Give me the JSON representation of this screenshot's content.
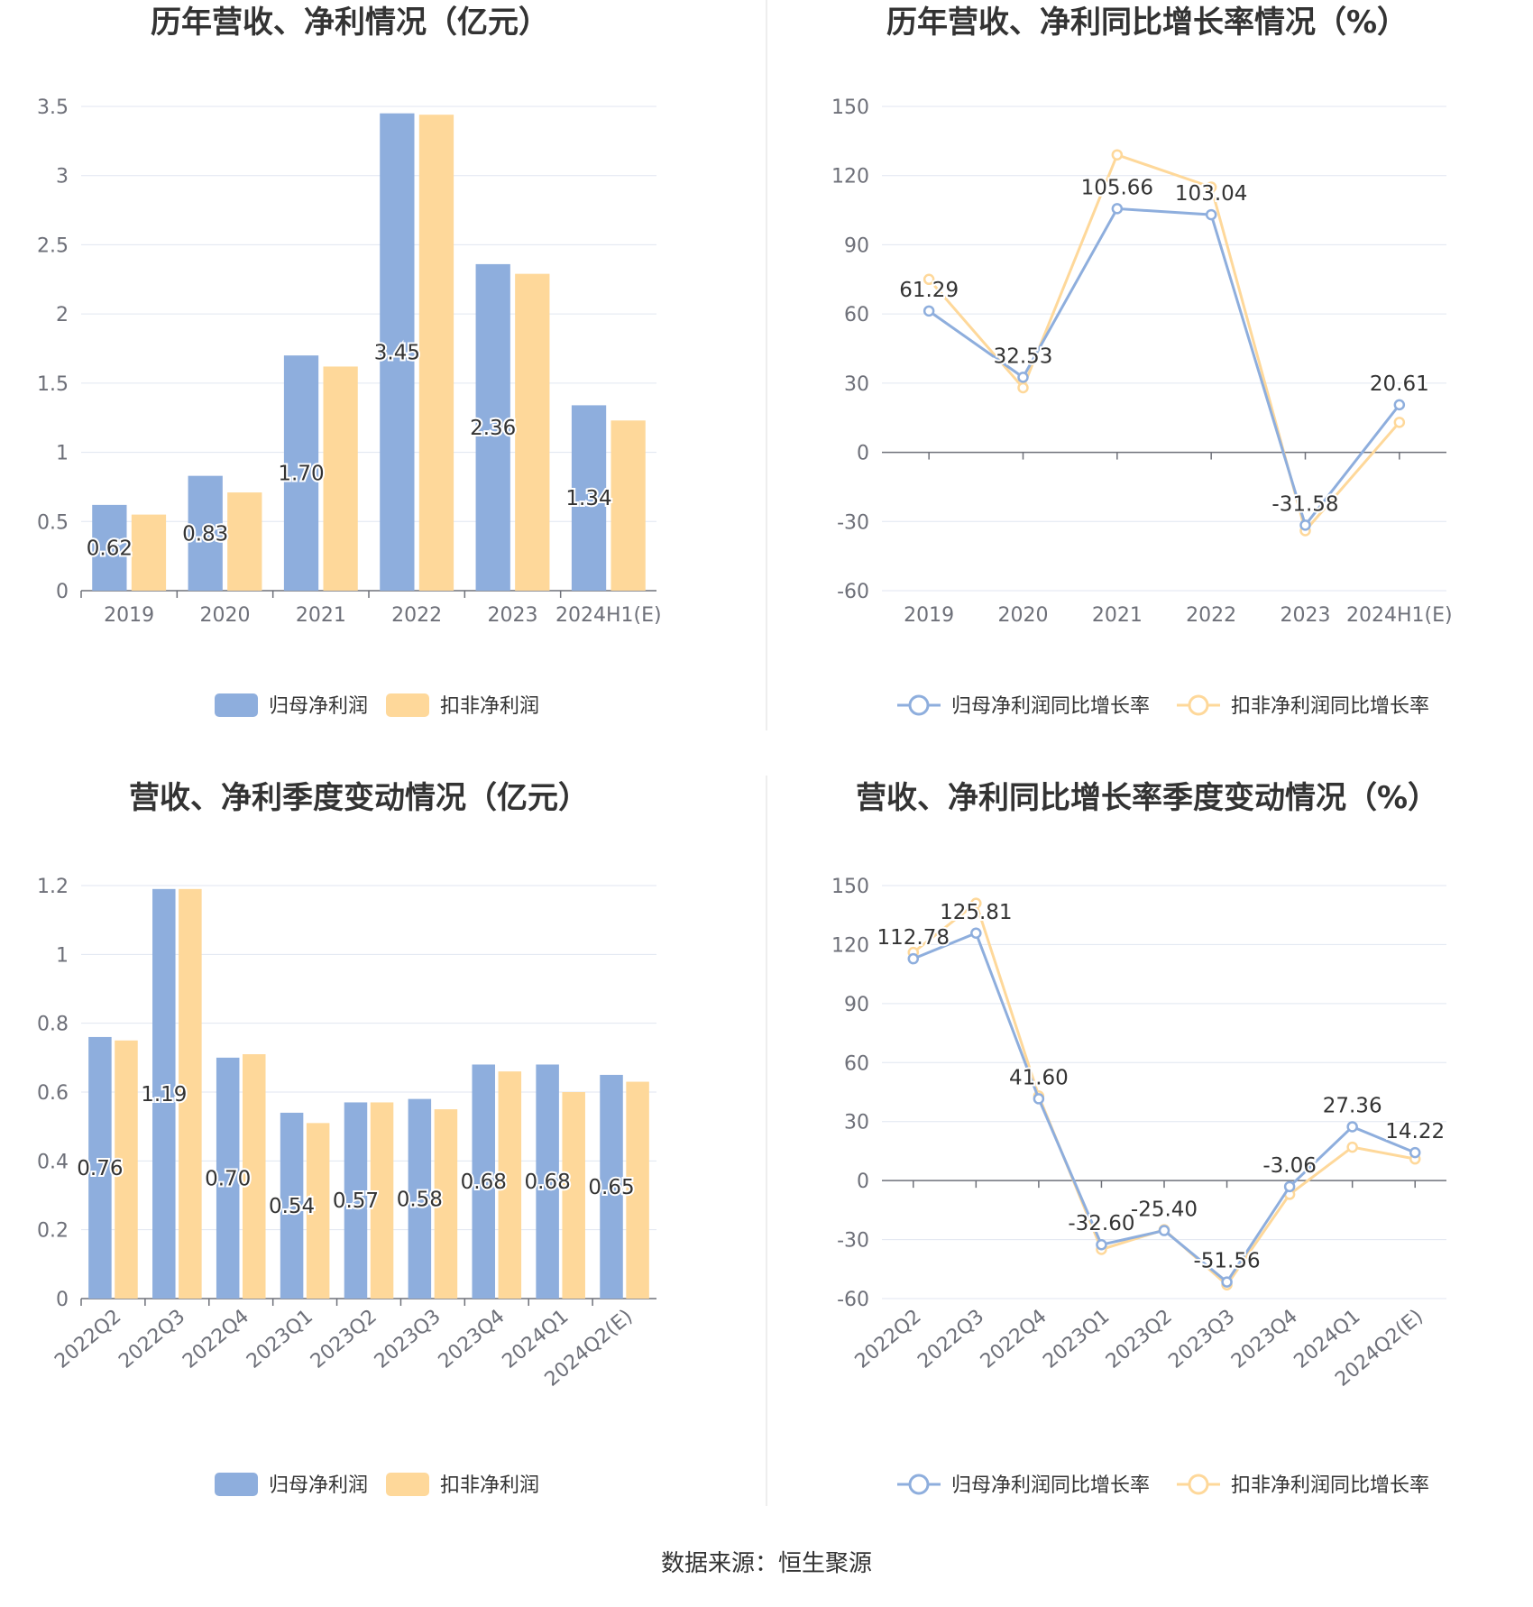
{
  "colors": {
    "primary": "#8eaedd",
    "secondary": "#fed89a",
    "grid": "#e0e6f1",
    "axis": "#6e7079",
    "divider": "#eeeeee"
  },
  "source": "数据来源：恒生聚源",
  "chart_data": [
    {
      "id": "annual-profit",
      "type": "bar",
      "title": "历年营收、净利情况（亿元）",
      "categories": [
        "2019",
        "2020",
        "2021",
        "2022",
        "2023",
        "2024H1(E)"
      ],
      "series": [
        {
          "name": "归母净利润",
          "values": [
            0.62,
            0.83,
            1.7,
            3.45,
            2.36,
            1.34
          ],
          "labels": [
            "0.62",
            "0.83",
            "1.70",
            "3.45",
            "2.36",
            "1.34"
          ]
        },
        {
          "name": "扣非净利润",
          "values": [
            0.55,
            0.71,
            1.62,
            3.44,
            2.29,
            1.23
          ]
        }
      ],
      "yticks": [
        "0",
        "0.5",
        "1",
        "1.5",
        "2",
        "2.5",
        "3",
        "3.5"
      ],
      "ylim": [
        0,
        3.5
      ],
      "grid": true,
      "legend": "bottom"
    },
    {
      "id": "annual-growth",
      "type": "line",
      "title": "历年营收、净利同比增长率情况（%）",
      "categories": [
        "2019",
        "2020",
        "2021",
        "2022",
        "2023",
        "2024H1(E)"
      ],
      "series": [
        {
          "name": "归母净利润同比增长率",
          "values": [
            61.29,
            32.53,
            105.66,
            103.04,
            -31.58,
            20.61
          ],
          "labels": [
            "61.29",
            "32.53",
            "105.66",
            "103.04",
            "-31.58",
            "20.61"
          ]
        },
        {
          "name": "扣非净利润同比增长率",
          "values": [
            75,
            28,
            129,
            115,
            -34,
            13
          ]
        }
      ],
      "yticks": [
        "-60",
        "-30",
        "0",
        "30",
        "60",
        "90",
        "120",
        "150"
      ],
      "ylim": [
        -60,
        150
      ],
      "grid": true,
      "legend": "bottom"
    },
    {
      "id": "quarterly-profit",
      "type": "bar",
      "title": "营收、净利季度变动情况（亿元）",
      "categories": [
        "2022Q2",
        "2022Q3",
        "2022Q4",
        "2023Q1",
        "2023Q2",
        "2023Q3",
        "2023Q4",
        "2024Q1",
        "2024Q2(E)"
      ],
      "series": [
        {
          "name": "归母净利润",
          "values": [
            0.76,
            1.19,
            0.7,
            0.54,
            0.57,
            0.58,
            0.68,
            0.68,
            0.65
          ],
          "labels": [
            "0.76",
            "1.19",
            "0.70",
            "0.54",
            "0.57",
            "0.58",
            "0.68",
            "0.68",
            "0.65"
          ]
        },
        {
          "name": "扣非净利润",
          "values": [
            0.75,
            1.19,
            0.71,
            0.51,
            0.57,
            0.55,
            0.66,
            0.6,
            0.63
          ]
        }
      ],
      "yticks": [
        "0",
        "0.2",
        "0.4",
        "0.6",
        "0.8",
        "1",
        "1.2"
      ],
      "ylim": [
        0,
        1.2
      ],
      "grid": true,
      "legend": "bottom"
    },
    {
      "id": "quarterly-growth",
      "type": "line",
      "title": "营收、净利同比增长率季度变动情况（%）",
      "categories": [
        "2022Q2",
        "2022Q3",
        "2022Q4",
        "2023Q1",
        "2023Q2",
        "2023Q3",
        "2023Q4",
        "2024Q1",
        "2024Q2(E)"
      ],
      "series": [
        {
          "name": "归母净利润同比增长率",
          "values": [
            112.78,
            125.81,
            41.6,
            -32.6,
            -25.4,
            -51.56,
            -3.06,
            27.36,
            14.22
          ],
          "labels": [
            "112.78",
            "125.81",
            "41.60",
            "-32.60",
            "-25.40",
            "-51.56",
            "-3.06",
            "27.36",
            "14.22"
          ]
        },
        {
          "name": "扣非净利润同比增长率",
          "values": [
            116,
            141,
            43,
            -35,
            -25,
            -53,
            -7,
            17,
            11
          ]
        }
      ],
      "yticks": [
        "-60",
        "-30",
        "0",
        "30",
        "60",
        "90",
        "120",
        "150"
      ],
      "ylim": [
        -60,
        150
      ],
      "grid": true,
      "legend": "bottom"
    }
  ]
}
